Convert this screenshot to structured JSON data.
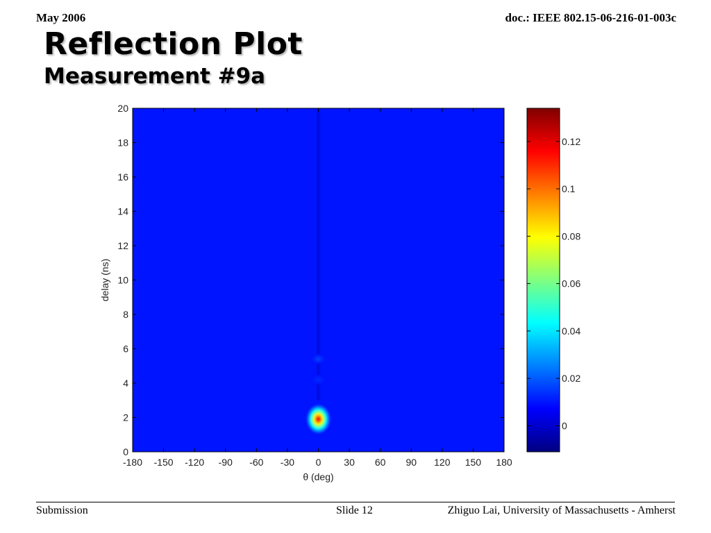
{
  "header": {
    "date": "May 2006",
    "doc": "doc.: IEEE 802.15-06-216-01-003c"
  },
  "slide": {
    "title": "Reflection Plot",
    "subtitle": "Measurement #9a"
  },
  "footer": {
    "left": "Submission",
    "center": "Slide 12",
    "right": "Zhiguo Lai, University of Massachusetts - Amherst"
  },
  "chart_data": {
    "type": "heatmap",
    "xlabel": "θ (deg)",
    "ylabel": "delay (ns)",
    "xlim": [
      -180,
      180
    ],
    "ylim": [
      0,
      20
    ],
    "x_ticks": [
      "-180",
      "-150",
      "-120",
      "-90",
      "-60",
      "-30",
      "0",
      "30",
      "60",
      "90",
      "120",
      "150",
      "180"
    ],
    "y_ticks": [
      "0",
      "2",
      "4",
      "6",
      "8",
      "10",
      "12",
      "14",
      "16",
      "18",
      "20"
    ],
    "colorbar": {
      "colormap": "jet",
      "range": [
        -0.011,
        0.134
      ],
      "ticks": [
        "0",
        "0.02",
        "0.04",
        "0.06",
        "0.08",
        "0.1",
        "0.12"
      ]
    },
    "background_level": 0.01,
    "peaks": [
      {
        "theta_deg": 0,
        "delay_ns": 1.9,
        "value": 0.132
      },
      {
        "theta_deg": 0,
        "delay_ns": 5.4,
        "value": 0.018
      },
      {
        "theta_deg": 0,
        "delay_ns": 4.2,
        "value": 0.014
      }
    ]
  }
}
